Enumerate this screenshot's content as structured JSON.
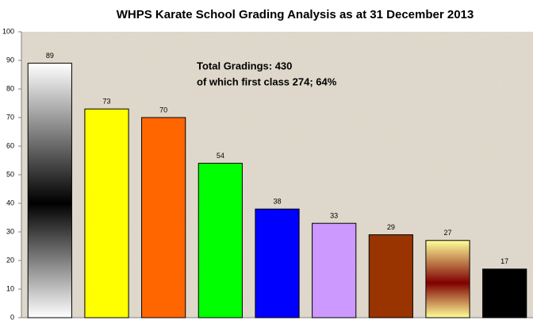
{
  "chart_data": {
    "type": "bar",
    "title": "WHPS Karate School Grading Analysis as at 31 December 2013",
    "annotations": [
      "Total Gradings: 430",
      "of which first class 274; 64%"
    ],
    "categories": [
      null,
      null,
      null,
      null,
      null,
      null,
      null,
      null,
      null
    ],
    "values": [
      89,
      73,
      70,
      54,
      38,
      33,
      29,
      27,
      17
    ],
    "colors": [
      [
        "#ffffff",
        "#000000",
        "#ffffff"
      ],
      "#ffff00",
      "#ff6600",
      "#00ff00",
      "#0000ff",
      "#cc99ff",
      "#993300",
      [
        "#ffff99",
        "#800000",
        "#ffff99"
      ],
      "#000000"
    ],
    "ylim": [
      0,
      100
    ],
    "yticks": [
      0,
      10,
      20,
      30,
      40,
      50,
      60,
      70,
      80,
      90,
      100
    ],
    "grid": false
  }
}
